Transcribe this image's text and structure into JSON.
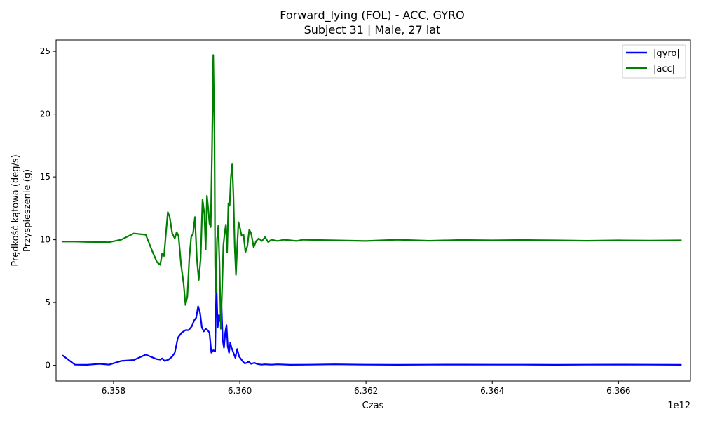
{
  "chart_data": {
    "type": "line",
    "title": "Forward_lying (FOL) - ACC, GYRO",
    "subtitle": "Subject 31 | Male, 27 lat",
    "xlabel": "Czas",
    "ylabel_lines": [
      "Prędkość kątowa (deg/s)",
      "Przyspieszenie (g)"
    ],
    "x_offset_label": "1e12",
    "xlim": [
      6.35709,
      6.36714
    ],
    "ylim": [
      -1.25,
      25.9
    ],
    "x_ticks": [
      {
        "value": 6.358,
        "label": "6.358"
      },
      {
        "value": 6.36,
        "label": "6.360"
      },
      {
        "value": 6.362,
        "label": "6.362"
      },
      {
        "value": 6.364,
        "label": "6.364"
      },
      {
        "value": 6.366,
        "label": "6.366"
      }
    ],
    "y_ticks": [
      {
        "value": 0,
        "label": "0"
      },
      {
        "value": 5,
        "label": "5"
      },
      {
        "value": 10,
        "label": "10"
      },
      {
        "value": 15,
        "label": "15"
      },
      {
        "value": 20,
        "label": "20"
      },
      {
        "value": 25,
        "label": "25"
      }
    ],
    "grid": false,
    "legend_position": "top-right",
    "series": [
      {
        "name": "|gyro|",
        "color": "#0000ff",
        "points": [
          [
            6.35719,
            0.8
          ],
          [
            6.35739,
            0.05
          ],
          [
            6.35758,
            0.04
          ],
          [
            6.35778,
            0.12
          ],
          [
            6.35793,
            0.05
          ],
          [
            6.35812,
            0.35
          ],
          [
            6.35832,
            0.42
          ],
          [
            6.35851,
            0.85
          ],
          [
            6.35868,
            0.5
          ],
          [
            6.35874,
            0.45
          ],
          [
            6.35877,
            0.55
          ],
          [
            6.35881,
            0.35
          ],
          [
            6.35887,
            0.45
          ],
          [
            6.35893,
            0.7
          ],
          [
            6.35897,
            1.0
          ],
          [
            6.35902,
            2.2
          ],
          [
            6.35908,
            2.6
          ],
          [
            6.35914,
            2.8
          ],
          [
            6.35919,
            2.8
          ],
          [
            6.35924,
            3.1
          ],
          [
            6.35928,
            3.6
          ],
          [
            6.35931,
            3.8
          ],
          [
            6.35934,
            4.7
          ],
          [
            6.35937,
            4.2
          ],
          [
            6.3594,
            3.0
          ],
          [
            6.35943,
            2.7
          ],
          [
            6.35946,
            2.9
          ],
          [
            6.35949,
            2.8
          ],
          [
            6.35952,
            2.6
          ],
          [
            6.35955,
            1.0
          ],
          [
            6.35958,
            1.2
          ],
          [
            6.35961,
            1.1
          ],
          [
            6.35963,
            6.6
          ],
          [
            6.35965,
            3.0
          ],
          [
            6.35967,
            4.0
          ],
          [
            6.35969,
            3.5
          ],
          [
            6.35971,
            4.9
          ],
          [
            6.35973,
            2.0
          ],
          [
            6.35975,
            1.4
          ],
          [
            6.35977,
            2.6
          ],
          [
            6.35979,
            3.2
          ],
          [
            6.35981,
            1.5
          ],
          [
            6.35983,
            1.0
          ],
          [
            6.35985,
            1.8
          ],
          [
            6.35987,
            1.4
          ],
          [
            6.3599,
            1.0
          ],
          [
            6.35993,
            0.6
          ],
          [
            6.35996,
            1.3
          ],
          [
            6.35999,
            0.7
          ],
          [
            6.36002,
            0.5
          ],
          [
            6.36005,
            0.3
          ],
          [
            6.36008,
            0.15
          ],
          [
            6.36011,
            0.2
          ],
          [
            6.36014,
            0.3
          ],
          [
            6.36018,
            0.12
          ],
          [
            6.36023,
            0.2
          ],
          [
            6.36028,
            0.1
          ],
          [
            6.36034,
            0.05
          ],
          [
            6.3604,
            0.08
          ],
          [
            6.3605,
            0.05
          ],
          [
            6.3606,
            0.08
          ],
          [
            6.3608,
            0.04
          ],
          [
            6.3611,
            0.05
          ],
          [
            6.3615,
            0.08
          ],
          [
            6.362,
            0.05
          ],
          [
            6.3625,
            0.04
          ],
          [
            6.363,
            0.05
          ],
          [
            6.3635,
            0.06
          ],
          [
            6.364,
            0.05
          ],
          [
            6.3645,
            0.05
          ],
          [
            6.365,
            0.04
          ],
          [
            6.3655,
            0.05
          ],
          [
            6.366,
            0.06
          ],
          [
            6.3665,
            0.05
          ],
          [
            6.367,
            0.04
          ]
        ]
      },
      {
        "name": "|acc|",
        "color": "#008000",
        "points": [
          [
            6.35719,
            9.85
          ],
          [
            6.35739,
            9.85
          ],
          [
            6.35758,
            9.82
          ],
          [
            6.35778,
            9.81
          ],
          [
            6.35793,
            9.8
          ],
          [
            6.35812,
            10.0
          ],
          [
            6.35832,
            10.5
          ],
          [
            6.35851,
            10.4
          ],
          [
            6.35862,
            9.0
          ],
          [
            6.35869,
            8.2
          ],
          [
            6.35874,
            8.0
          ],
          [
            6.35877,
            8.9
          ],
          [
            6.3588,
            8.7
          ],
          [
            6.35883,
            10.5
          ],
          [
            6.35886,
            12.2
          ],
          [
            6.35889,
            11.8
          ],
          [
            6.35893,
            10.5
          ],
          [
            6.35897,
            10.1
          ],
          [
            6.359,
            10.6
          ],
          [
            6.35903,
            10.3
          ],
          [
            6.35907,
            8.0
          ],
          [
            6.35911,
            6.5
          ],
          [
            6.35914,
            4.8
          ],
          [
            6.35917,
            5.5
          ],
          [
            6.3592,
            8.5
          ],
          [
            6.35923,
            10.2
          ],
          [
            6.35926,
            10.5
          ],
          [
            6.35929,
            11.8
          ],
          [
            6.35932,
            8.5
          ],
          [
            6.35935,
            6.8
          ],
          [
            6.35938,
            8.5
          ],
          [
            6.35941,
            13.2
          ],
          [
            6.35944,
            12.0
          ],
          [
            6.35946,
            9.2
          ],
          [
            6.35948,
            13.5
          ],
          [
            6.3595,
            12.5
          ],
          [
            6.35952,
            11.3
          ],
          [
            6.35954,
            11.0
          ],
          [
            6.35956,
            17.0
          ],
          [
            6.35958,
            24.7
          ],
          [
            6.3596,
            18.0
          ],
          [
            6.35961,
            8.0
          ],
          [
            6.35962,
            5.8
          ],
          [
            6.35964,
            10.0
          ],
          [
            6.35966,
            11.1
          ],
          [
            6.35968,
            8.0
          ],
          [
            6.3597,
            2.9
          ],
          [
            6.35972,
            6.0
          ],
          [
            6.35974,
            9.5
          ],
          [
            6.35976,
            10.5
          ],
          [
            6.35978,
            11.2
          ],
          [
            6.3598,
            9.0
          ],
          [
            6.35982,
            12.9
          ],
          [
            6.35984,
            12.7
          ],
          [
            6.35986,
            15.0
          ],
          [
            6.35988,
            16.0
          ],
          [
            6.3599,
            13.5
          ],
          [
            6.35992,
            9.5
          ],
          [
            6.35994,
            7.2
          ],
          [
            6.35996,
            9.5
          ],
          [
            6.35998,
            11.4
          ],
          [
            6.36,
            11.0
          ],
          [
            6.36003,
            10.3
          ],
          [
            6.36006,
            10.4
          ],
          [
            6.36009,
            9.0
          ],
          [
            6.36012,
            9.5
          ],
          [
            6.36015,
            10.8
          ],
          [
            6.36018,
            10.5
          ],
          [
            6.36022,
            9.4
          ],
          [
            6.36026,
            9.9
          ],
          [
            6.3603,
            10.1
          ],
          [
            6.36035,
            9.9
          ],
          [
            6.3604,
            10.2
          ],
          [
            6.36045,
            9.8
          ],
          [
            6.3605,
            10.0
          ],
          [
            6.3606,
            9.9
          ],
          [
            6.3607,
            10.0
          ],
          [
            6.3608,
            9.95
          ],
          [
            6.3609,
            9.9
          ],
          [
            6.361,
            10.0
          ],
          [
            6.3615,
            9.95
          ],
          [
            6.362,
            9.9
          ],
          [
            6.3625,
            10.0
          ],
          [
            6.363,
            9.92
          ],
          [
            6.3635,
            9.98
          ],
          [
            6.364,
            9.95
          ],
          [
            6.3645,
            9.98
          ],
          [
            6.365,
            9.95
          ],
          [
            6.3655,
            9.92
          ],
          [
            6.366,
            9.95
          ],
          [
            6.3665,
            9.93
          ],
          [
            6.367,
            9.95
          ]
        ]
      }
    ]
  }
}
